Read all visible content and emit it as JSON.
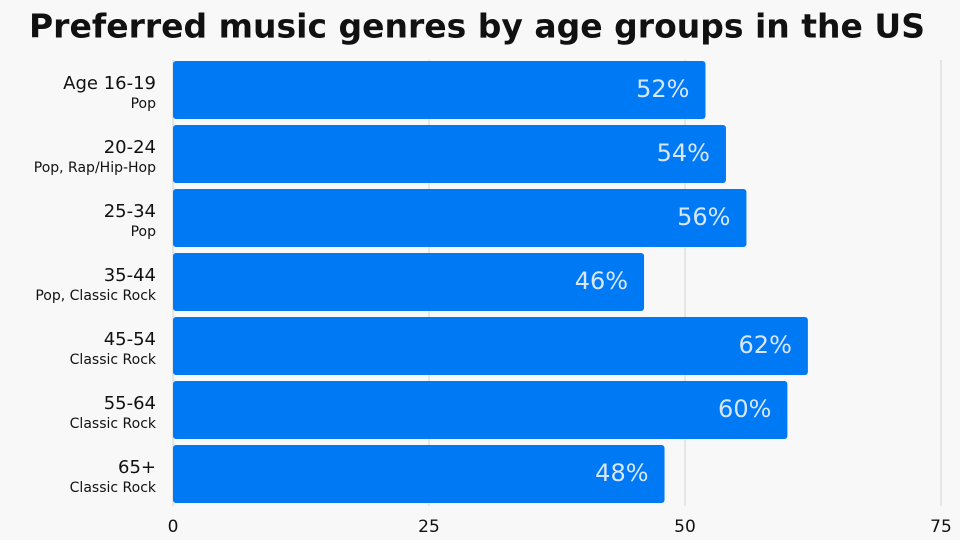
{
  "chart_data": {
    "type": "bar",
    "orientation": "horizontal",
    "title": "Preferred music genres by age groups in the US",
    "categories": [
      "Age 16-19",
      "20-24",
      "25-34",
      "35-44",
      "45-54",
      "55-64",
      "65+"
    ],
    "subcategories": [
      "Pop",
      "Pop, Rap/Hip-Hop",
      "Pop",
      "Pop, Classic Rock",
      "Classic Rock",
      "Classic Rock",
      "Classic Rock"
    ],
    "values": [
      52,
      54,
      56,
      46,
      62,
      60,
      48
    ],
    "value_labels": [
      "52%",
      "54%",
      "56%",
      "46%",
      "62%",
      "60%",
      "48%"
    ],
    "color": "#0079f5",
    "xlim": [
      0,
      75
    ],
    "xticks": [
      0,
      25,
      50,
      75
    ],
    "grid": true
  }
}
